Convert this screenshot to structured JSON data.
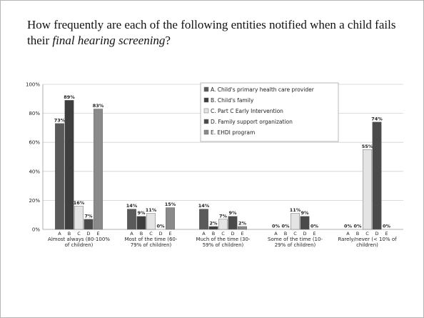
{
  "question": {
    "before": "How frequently are each of the following entities notified when a child fails their ",
    "emphasis": "final hearing screening",
    "after": "?"
  },
  "chart_data": {
    "type": "bar",
    "categories": [
      "Almost always (80-100% of children)",
      "Most of the time (60-79% of children)",
      "Much of the time (30-59% of children)",
      "Some of the time (10-29% of children)",
      "Rarely/never (< 10% of children)"
    ],
    "category_label_lines": [
      [
        "Almost always (80-100%",
        "of children)"
      ],
      [
        "Most of the time (60-",
        "79% of children)"
      ],
      [
        "Much of the time (30-",
        "59% of children)"
      ],
      [
        "Some of the time (10-",
        "29% of children)"
      ],
      [
        "Rarely/never (< 10% of",
        "children)"
      ]
    ],
    "subcategories": [
      "A",
      "B",
      "C",
      "D",
      "E"
    ],
    "series": [
      {
        "name": "A. Child's primary health care provider",
        "color": "#5a5a5a",
        "values": [
          73,
          14,
          14,
          0,
          0
        ],
        "labels": [
          "73%",
          "14%",
          "14%",
          "0%",
          "0%"
        ]
      },
      {
        "name": "B. Child's family",
        "color": "#3e3e3e",
        "values": [
          89,
          9,
          2,
          0,
          0
        ],
        "labels": [
          "89%",
          "9%",
          "2%",
          "0%",
          "0%"
        ]
      },
      {
        "name": "C. Part C Early Intervention",
        "color": "#e4e4e4",
        "values": [
          16,
          11,
          7,
          11,
          55
        ],
        "labels": [
          "16%",
          "11%",
          "7%",
          "11%",
          "55%"
        ]
      },
      {
        "name": "D. Family support organization",
        "color": "#4a4a4a",
        "values": [
          7,
          0,
          9,
          9,
          74
        ],
        "labels": [
          "7%",
          "0%",
          "9%",
          "9%",
          "74%"
        ]
      },
      {
        "name": "E. EHDI program",
        "color": "#8a8a8a",
        "values": [
          83,
          15,
          2,
          0,
          0
        ],
        "labels": [
          "83%",
          "15%",
          "2%",
          "0%",
          "0%"
        ]
      }
    ],
    "ylim": [
      0,
      100
    ],
    "yticks": [
      0,
      20,
      40,
      60,
      80,
      100
    ],
    "ytick_labels": [
      "0%",
      "20%",
      "40%",
      "60%",
      "80%",
      "100%"
    ],
    "grid": true,
    "legend": "top-center"
  }
}
